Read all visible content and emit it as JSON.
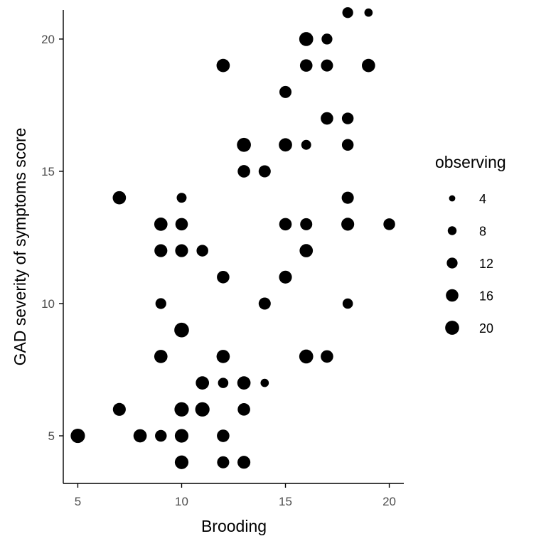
{
  "chart_data": {
    "type": "scatter",
    "xlabel": "Brooding",
    "ylabel": "GAD severity of symptoms score",
    "xlim": [
      4.3,
      20.7
    ],
    "ylim": [
      3.2,
      21.1
    ],
    "xticks": [
      5,
      10,
      15,
      20
    ],
    "yticks": [
      5,
      10,
      15,
      20
    ],
    "grid": false,
    "size_variable": "observing",
    "legend": {
      "title": "observing",
      "placement": "right",
      "sizes": [
        4,
        8,
        12,
        16,
        20
      ]
    },
    "colors": {
      "points": "#000000",
      "axis": "#000000",
      "tick_text": "#4d4d4d"
    },
    "points": [
      {
        "x": 18,
        "y": 21,
        "size": 12
      },
      {
        "x": 19,
        "y": 21,
        "size": 7
      },
      {
        "x": 16,
        "y": 20,
        "size": 20
      },
      {
        "x": 17,
        "y": 20,
        "size": 12
      },
      {
        "x": 12,
        "y": 19,
        "size": 18
      },
      {
        "x": 16,
        "y": 19,
        "size": 16
      },
      {
        "x": 17,
        "y": 19,
        "size": 15
      },
      {
        "x": 19,
        "y": 19,
        "size": 18
      },
      {
        "x": 15,
        "y": 18,
        "size": 15
      },
      {
        "x": 17,
        "y": 17,
        "size": 16
      },
      {
        "x": 18,
        "y": 17,
        "size": 14
      },
      {
        "x": 13,
        "y": 16,
        "size": 20
      },
      {
        "x": 15,
        "y": 16,
        "size": 18
      },
      {
        "x": 16,
        "y": 16,
        "size": 10
      },
      {
        "x": 18,
        "y": 16,
        "size": 14
      },
      {
        "x": 13,
        "y": 15,
        "size": 16
      },
      {
        "x": 14,
        "y": 15,
        "size": 15
      },
      {
        "x": 7,
        "y": 14,
        "size": 18
      },
      {
        "x": 10,
        "y": 14,
        "size": 10
      },
      {
        "x": 18,
        "y": 14,
        "size": 15
      },
      {
        "x": 9,
        "y": 13,
        "size": 18
      },
      {
        "x": 10,
        "y": 13,
        "size": 16
      },
      {
        "x": 15,
        "y": 13,
        "size": 16
      },
      {
        "x": 16,
        "y": 13,
        "size": 15
      },
      {
        "x": 18,
        "y": 13,
        "size": 17
      },
      {
        "x": 20,
        "y": 13,
        "size": 14
      },
      {
        "x": 9,
        "y": 12,
        "size": 17
      },
      {
        "x": 10,
        "y": 12,
        "size": 17
      },
      {
        "x": 11,
        "y": 12,
        "size": 14
      },
      {
        "x": 16,
        "y": 12,
        "size": 18
      },
      {
        "x": 12,
        "y": 11,
        "size": 16
      },
      {
        "x": 15,
        "y": 11,
        "size": 17
      },
      {
        "x": 9,
        "y": 10,
        "size": 12
      },
      {
        "x": 14,
        "y": 10,
        "size": 15
      },
      {
        "x": 18,
        "y": 10,
        "size": 11
      },
      {
        "x": 10,
        "y": 9,
        "size": 22
      },
      {
        "x": 9,
        "y": 8,
        "size": 18
      },
      {
        "x": 12,
        "y": 8,
        "size": 18
      },
      {
        "x": 16,
        "y": 8,
        "size": 20
      },
      {
        "x": 17,
        "y": 8,
        "size": 16
      },
      {
        "x": 11,
        "y": 7,
        "size": 18
      },
      {
        "x": 12,
        "y": 7,
        "size": 11
      },
      {
        "x": 13,
        "y": 7,
        "size": 18
      },
      {
        "x": 14,
        "y": 7,
        "size": 7
      },
      {
        "x": 7,
        "y": 6,
        "size": 17
      },
      {
        "x": 10,
        "y": 6,
        "size": 21
      },
      {
        "x": 11,
        "y": 6,
        "size": 21
      },
      {
        "x": 13,
        "y": 6,
        "size": 16
      },
      {
        "x": 5,
        "y": 5,
        "size": 21
      },
      {
        "x": 8,
        "y": 5,
        "size": 18
      },
      {
        "x": 9,
        "y": 5,
        "size": 14
      },
      {
        "x": 10,
        "y": 5,
        "size": 19
      },
      {
        "x": 12,
        "y": 5,
        "size": 16
      },
      {
        "x": 10,
        "y": 4,
        "size": 19
      },
      {
        "x": 12,
        "y": 4,
        "size": 15
      },
      {
        "x": 13,
        "y": 4,
        "size": 17
      }
    ]
  }
}
